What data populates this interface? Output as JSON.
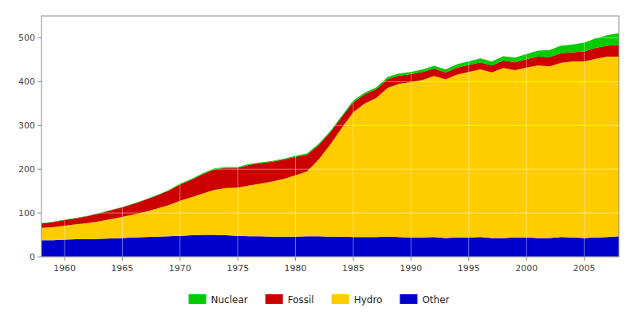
{
  "chart_data": {
    "type": "area",
    "stacked": true,
    "grid": true,
    "legend": "bottom",
    "x": [
      1958,
      1959,
      1960,
      1961,
      1962,
      1963,
      1964,
      1965,
      1966,
      1967,
      1968,
      1969,
      1970,
      1971,
      1972,
      1973,
      1974,
      1975,
      1976,
      1977,
      1978,
      1979,
      1980,
      1981,
      1982,
      1983,
      1984,
      1985,
      1986,
      1987,
      1988,
      1989,
      1990,
      1991,
      1992,
      1993,
      1994,
      1995,
      1996,
      1997,
      1998,
      1999,
      2000,
      2001,
      2002,
      2003,
      2004,
      2005,
      2006,
      2007,
      2008
    ],
    "series": [
      {
        "name": "Other",
        "color": "#0000cc",
        "values": [
          38,
          38,
          39,
          40,
          40,
          41,
          42,
          43,
          44,
          45,
          46,
          47,
          48,
          49,
          50,
          50,
          49,
          48,
          47,
          47,
          46,
          46,
          46,
          47,
          47,
          46,
          46,
          45,
          45,
          45,
          46,
          45,
          44,
          44,
          45,
          43,
          44,
          44,
          45,
          43,
          43,
          44,
          44,
          43,
          43,
          45,
          44,
          43,
          44,
          45,
          47
        ]
      },
      {
        "name": "Hydro",
        "color": "#ffcc00",
        "values": [
          28,
          30,
          32,
          34,
          37,
          40,
          44,
          48,
          53,
          58,
          64,
          71,
          80,
          87,
          95,
          103,
          108,
          110,
          116,
          120,
          126,
          132,
          140,
          148,
          175,
          210,
          248,
          285,
          305,
          318,
          340,
          350,
          355,
          360,
          368,
          362,
          372,
          378,
          383,
          378,
          388,
          382,
          388,
          394,
          392,
          398,
          402,
          403,
          408,
          412,
          410
        ]
      },
      {
        "name": "Fossil",
        "color": "#cc0000",
        "values": [
          10,
          11,
          13,
          14,
          16,
          18,
          20,
          22,
          24,
          27,
          30,
          33,
          37,
          40,
          44,
          47,
          46,
          45,
          47,
          47,
          45,
          44,
          42,
          38,
          33,
          28,
          25,
          23,
          21,
          20,
          20,
          19,
          18,
          18,
          17,
          16,
          16,
          16,
          16,
          16,
          17,
          18,
          19,
          20,
          21,
          22,
          21,
          23,
          25,
          25,
          27
        ]
      },
      {
        "name": "Nuclear",
        "color": "#00cc00",
        "values": [
          1,
          1,
          1,
          1,
          1,
          1,
          1,
          1,
          1,
          1,
          1,
          1,
          2,
          2,
          2,
          2,
          2,
          2,
          2,
          2,
          2,
          2,
          3,
          3,
          3,
          3,
          3,
          4,
          4,
          4,
          5,
          5,
          5,
          6,
          6,
          7,
          8,
          8,
          9,
          9,
          10,
          11,
          12,
          14,
          16,
          17,
          18,
          20,
          22,
          24,
          27
        ]
      }
    ],
    "xlim": [
      1958,
      2008
    ],
    "ylim": [
      0,
      550
    ],
    "xticks": [
      1960,
      1965,
      1970,
      1975,
      1980,
      1985,
      1990,
      1995,
      2000,
      2005
    ],
    "yticks": [
      0,
      100,
      200,
      300,
      400,
      500
    ]
  }
}
